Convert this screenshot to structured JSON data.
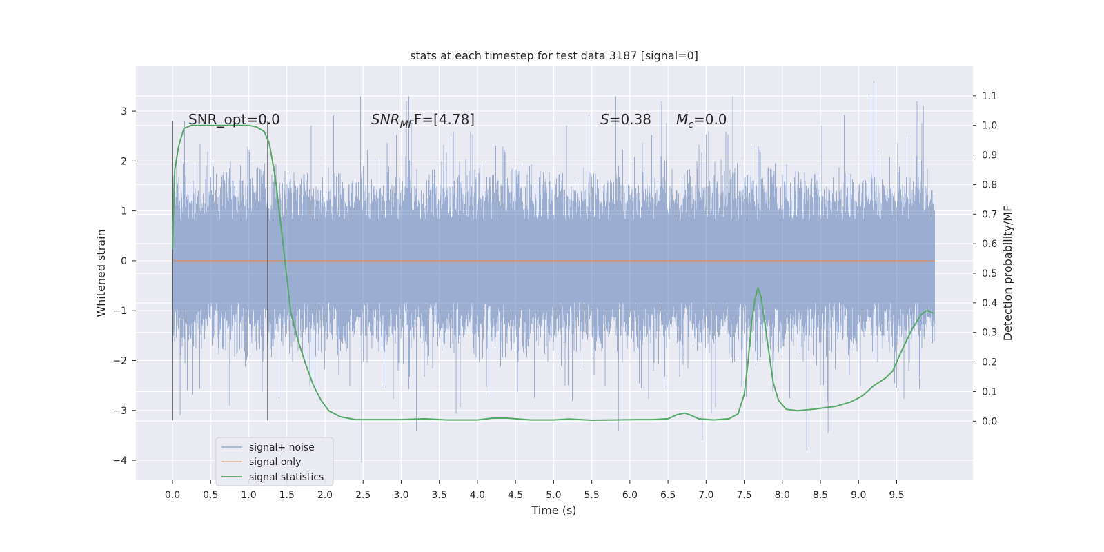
{
  "chart_data": {
    "type": "line",
    "title": "stats at each timestep for test data 3187 [signal=0]",
    "xlabel": "Time (s)",
    "ylabel": "Whitened strain",
    "ylabel_right": "Detection probability/MF",
    "xlim": [
      -0.48,
      10.5
    ],
    "ylim": [
      -4.4,
      3.9
    ],
    "ylim_right": [
      -0.2,
      1.2
    ],
    "x_ticks": [
      "0.0",
      "0.5",
      "1.0",
      "1.5",
      "2.0",
      "2.5",
      "3.0",
      "3.5",
      "4.0",
      "4.5",
      "5.0",
      "5.5",
      "6.0",
      "6.5",
      "7.0",
      "7.5",
      "8.0",
      "8.5",
      "9.0",
      "9.5"
    ],
    "y_ticks": [
      "−4",
      "−3",
      "−2",
      "−1",
      "0",
      "1",
      "2",
      "3"
    ],
    "y_ticks_right": [
      "0.0",
      "0.1",
      "0.2",
      "0.3",
      "0.4",
      "0.5",
      "0.6",
      "0.7",
      "0.8",
      "0.9",
      "1.0",
      "1.1"
    ],
    "grid": true,
    "legend_placement": "lower-left",
    "annotations": {
      "snr_opt": "SNR_opt=0.0",
      "snr_mf_label": "SNR",
      "snr_mf_sub": "MF",
      "snr_mf_tail": "F=[4.78]",
      "s_label": "S",
      "s_value": "=0.38",
      "mc_label": "M",
      "mc_sub": "c",
      "mc_value": "=0.0"
    },
    "markers": {
      "vertical_lines_x": [
        0.0,
        1.25
      ],
      "vertical_lines_y": [
        -3.2,
        2.8
      ]
    },
    "series": [
      {
        "name": "signal+ noise",
        "color": "#4c72b0",
        "axis": "left",
        "kind": "noise-band",
        "x_range": [
          0.0,
          10.0
        ],
        "core_range": [
          -1.4,
          1.4
        ],
        "peak_range": [
          -4.05,
          3.6
        ]
      },
      {
        "name": "signal only",
        "color": "#dd8452",
        "axis": "left",
        "x": [
          0.0,
          10.0
        ],
        "y": [
          0.0,
          0.0
        ]
      },
      {
        "name": "signal statistics",
        "color": "#55a868",
        "axis": "right",
        "x": [
          0.0,
          0.03,
          0.08,
          0.15,
          0.25,
          0.4,
          0.6,
          0.8,
          1.0,
          1.1,
          1.2,
          1.27,
          1.35,
          1.45,
          1.55,
          1.65,
          1.75,
          1.85,
          1.95,
          2.05,
          2.2,
          2.4,
          2.7,
          3.0,
          3.3,
          3.6,
          4.0,
          4.2,
          4.4,
          4.7,
          5.0,
          5.2,
          5.5,
          5.8,
          6.1,
          6.3,
          6.5,
          6.62,
          6.72,
          6.8,
          6.9,
          7.1,
          7.3,
          7.42,
          7.5,
          7.55,
          7.6,
          7.64,
          7.68,
          7.72,
          7.76,
          7.82,
          7.88,
          7.95,
          8.05,
          8.2,
          8.4,
          8.7,
          8.9,
          9.05,
          9.2,
          9.35,
          9.45,
          9.55,
          9.7,
          9.82,
          9.9,
          9.98
        ],
        "y": [
          0.58,
          0.85,
          0.93,
          0.99,
          1.0,
          1.0,
          1.0,
          1.0,
          1.0,
          0.995,
          0.98,
          0.94,
          0.82,
          0.6,
          0.37,
          0.27,
          0.19,
          0.12,
          0.07,
          0.035,
          0.015,
          0.005,
          0.005,
          0.005,
          0.008,
          0.004,
          0.004,
          0.01,
          0.01,
          0.004,
          0.004,
          0.007,
          0.003,
          0.004,
          0.005,
          0.005,
          0.008,
          0.022,
          0.027,
          0.02,
          0.008,
          0.004,
          0.008,
          0.025,
          0.09,
          0.2,
          0.34,
          0.41,
          0.45,
          0.42,
          0.35,
          0.24,
          0.13,
          0.07,
          0.04,
          0.035,
          0.04,
          0.05,
          0.065,
          0.085,
          0.12,
          0.145,
          0.17,
          0.23,
          0.31,
          0.36,
          0.375,
          0.365
        ]
      }
    ]
  }
}
